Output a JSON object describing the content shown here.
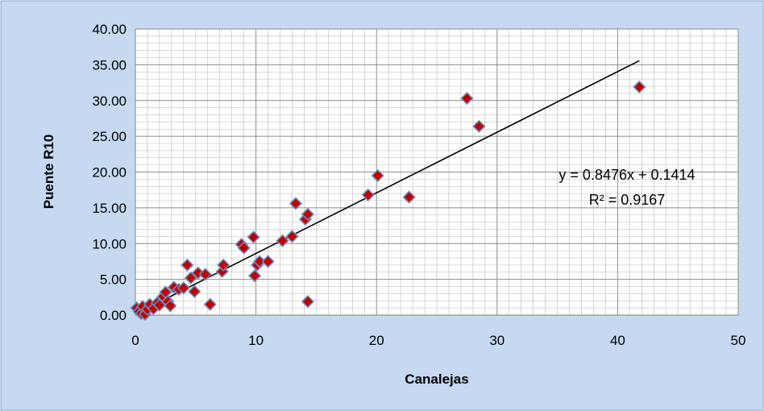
{
  "chart_data": {
    "type": "scatter",
    "title": "",
    "xlabel": "Canalejas",
    "ylabel": "Puente R10",
    "xlim": [
      0,
      50
    ],
    "ylim": [
      0,
      40
    ],
    "x_ticks": [
      0,
      10,
      20,
      30,
      40,
      50
    ],
    "y_ticks": [
      "0.00",
      "5.00",
      "10.00",
      "15.00",
      "20.00",
      "25.00",
      "30.00",
      "35.00",
      "40.00"
    ],
    "grid": true,
    "legend": "none",
    "marker": "diamond",
    "colors": {
      "background": "#c6d9f1",
      "plot_area": "#ffffff",
      "grid": "#b8b8b8",
      "marker_fill": "#c00000",
      "marker_edge": "#6c8ebf",
      "trendline": "#000000"
    },
    "points": [
      {
        "x": 0.1,
        "y": 1.0
      },
      {
        "x": 0.3,
        "y": 0.5
      },
      {
        "x": 0.5,
        "y": 0.2
      },
      {
        "x": 0.6,
        "y": 1.2
      },
      {
        "x": 0.8,
        "y": 0.1
      },
      {
        "x": 1.0,
        "y": 0.8
      },
      {
        "x": 1.2,
        "y": 1.5
      },
      {
        "x": 1.5,
        "y": 0.9
      },
      {
        "x": 1.8,
        "y": 1.7
      },
      {
        "x": 2.0,
        "y": 1.4
      },
      {
        "x": 2.3,
        "y": 2.6
      },
      {
        "x": 2.5,
        "y": 3.2
      },
      {
        "x": 2.7,
        "y": 1.9
      },
      {
        "x": 2.9,
        "y": 1.3
      },
      {
        "x": 3.2,
        "y": 3.9
      },
      {
        "x": 3.6,
        "y": 3.6
      },
      {
        "x": 4.0,
        "y": 3.8
      },
      {
        "x": 4.3,
        "y": 7.0
      },
      {
        "x": 4.6,
        "y": 5.2
      },
      {
        "x": 4.9,
        "y": 3.3
      },
      {
        "x": 5.2,
        "y": 5.9
      },
      {
        "x": 5.8,
        "y": 5.7
      },
      {
        "x": 6.2,
        "y": 1.5
      },
      {
        "x": 7.2,
        "y": 6.1
      },
      {
        "x": 7.3,
        "y": 7.0
      },
      {
        "x": 8.8,
        "y": 9.9
      },
      {
        "x": 9.0,
        "y": 9.4
      },
      {
        "x": 9.8,
        "y": 10.9
      },
      {
        "x": 9.9,
        "y": 5.5
      },
      {
        "x": 10.1,
        "y": 7.0
      },
      {
        "x": 10.3,
        "y": 7.5
      },
      {
        "x": 11.0,
        "y": 7.5
      },
      {
        "x": 12.2,
        "y": 10.4
      },
      {
        "x": 13.0,
        "y": 11.0
      },
      {
        "x": 13.3,
        "y": 15.6
      },
      {
        "x": 14.1,
        "y": 13.4
      },
      {
        "x": 14.3,
        "y": 14.1
      },
      {
        "x": 14.3,
        "y": 1.9
      },
      {
        "x": 19.3,
        "y": 16.8
      },
      {
        "x": 20.1,
        "y": 19.5
      },
      {
        "x": 22.7,
        "y": 16.5
      },
      {
        "x": 27.5,
        "y": 30.3
      },
      {
        "x": 28.5,
        "y": 26.4
      },
      {
        "x": 41.8,
        "y": 31.9
      }
    ],
    "trendline": {
      "type": "linear",
      "slope": 0.8476,
      "intercept": 0.1414,
      "x_range": [
        0,
        41.8
      ],
      "equation_label": "y = 0.8476x + 0.1414",
      "r2_label": "R² = 0.9167"
    }
  }
}
